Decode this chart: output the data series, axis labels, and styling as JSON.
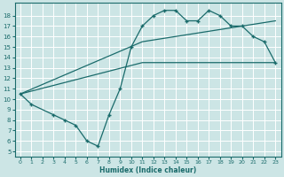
{
  "xlabel": "Humidex (Indice chaleur)",
  "ylabel": "",
  "bg_color": "#cce5e5",
  "grid_color": "#ffffff",
  "line_color": "#1a6b6b",
  "xlim": [
    -0.5,
    23.5
  ],
  "ylim": [
    4.5,
    19.2
  ],
  "xticks": [
    0,
    1,
    2,
    3,
    4,
    5,
    6,
    7,
    8,
    9,
    10,
    11,
    12,
    13,
    14,
    15,
    16,
    17,
    18,
    19,
    20,
    21,
    22,
    23
  ],
  "yticks": [
    5,
    6,
    7,
    8,
    9,
    10,
    11,
    12,
    13,
    14,
    15,
    16,
    17,
    18
  ],
  "curve1_x": [
    0,
    1,
    3,
    4,
    5,
    6,
    7,
    8,
    9,
    10,
    11,
    12,
    13,
    14,
    15,
    16,
    17,
    18,
    19,
    20,
    21,
    22,
    23
  ],
  "curve1_y": [
    10.5,
    9.5,
    8.5,
    8.0,
    7.5,
    6.0,
    5.5,
    8.5,
    11.0,
    15.0,
    17.0,
    18.0,
    18.5,
    18.5,
    17.5,
    17.5,
    18.5,
    18.0,
    17.0,
    17.0,
    16.0,
    15.5,
    13.5
  ],
  "line2_x": [
    0,
    11,
    23
  ],
  "line2_y": [
    10.5,
    15.5,
    17.5
  ],
  "line3_x": [
    0,
    11,
    23
  ],
  "line3_y": [
    10.5,
    13.5,
    13.5
  ]
}
